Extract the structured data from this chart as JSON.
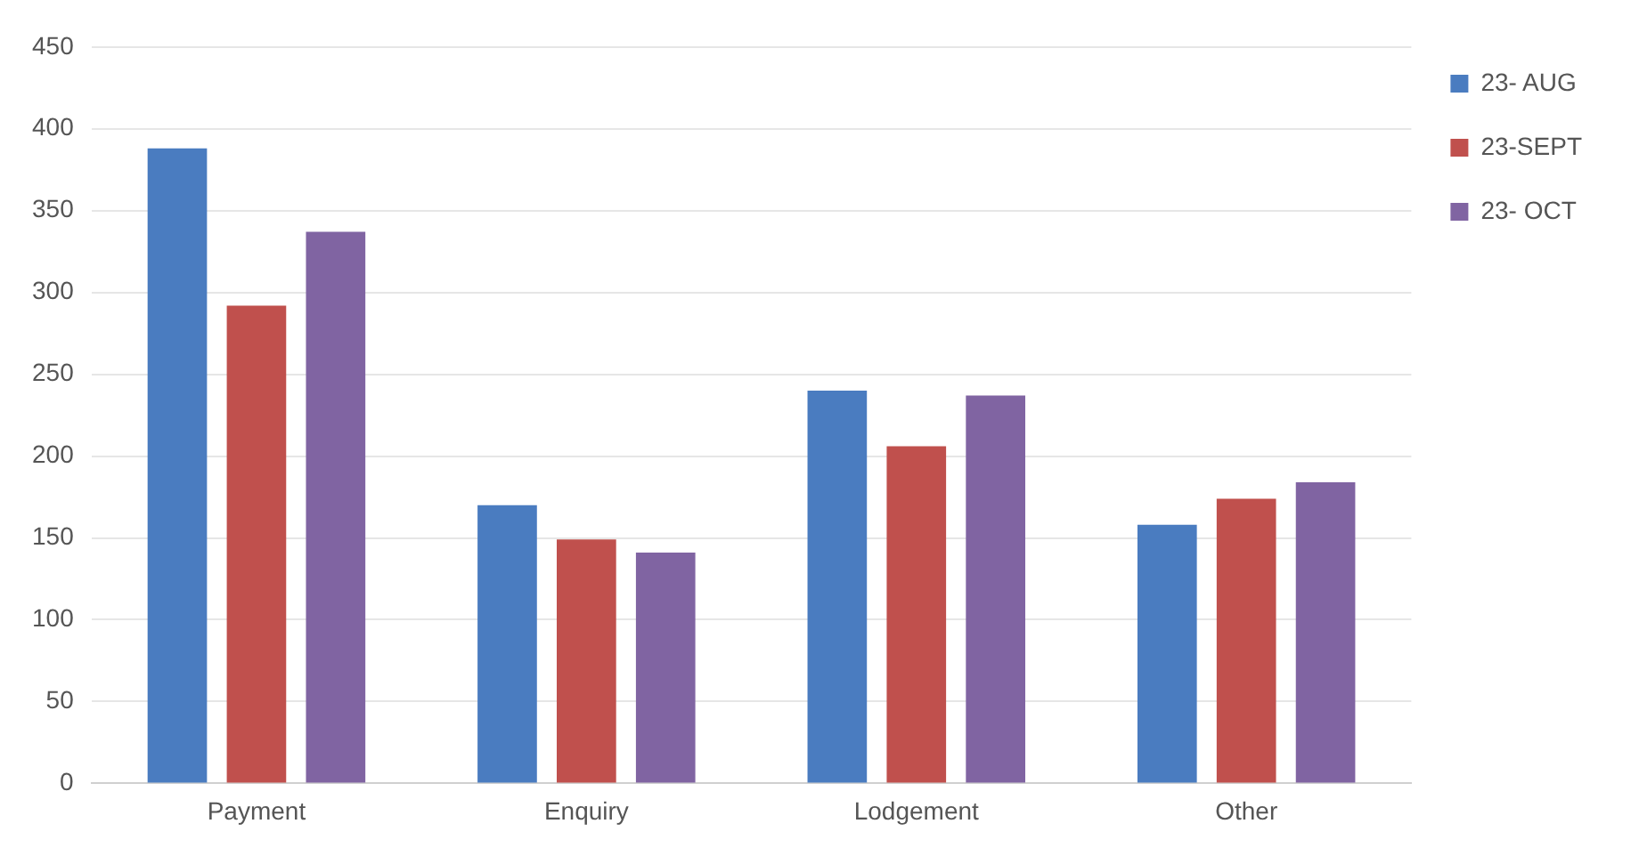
{
  "chart_data": {
    "type": "bar",
    "categories": [
      "Payment",
      "Enquiry",
      "Lodgement",
      "Other"
    ],
    "series": [
      {
        "name": "23- AUG",
        "color": "#4a7cc0",
        "values": [
          388,
          170,
          240,
          158
        ]
      },
      {
        "name": "23-SEPT",
        "color": "#c0504d",
        "values": [
          292,
          149,
          206,
          174
        ]
      },
      {
        "name": "23- OCT",
        "color": "#8064a2",
        "values": [
          337,
          141,
          237,
          184
        ]
      }
    ],
    "ylim": [
      0,
      450
    ],
    "yticks": [
      0,
      50,
      100,
      150,
      200,
      250,
      300,
      350,
      400,
      450
    ],
    "grid": "y",
    "legend": "top right"
  }
}
